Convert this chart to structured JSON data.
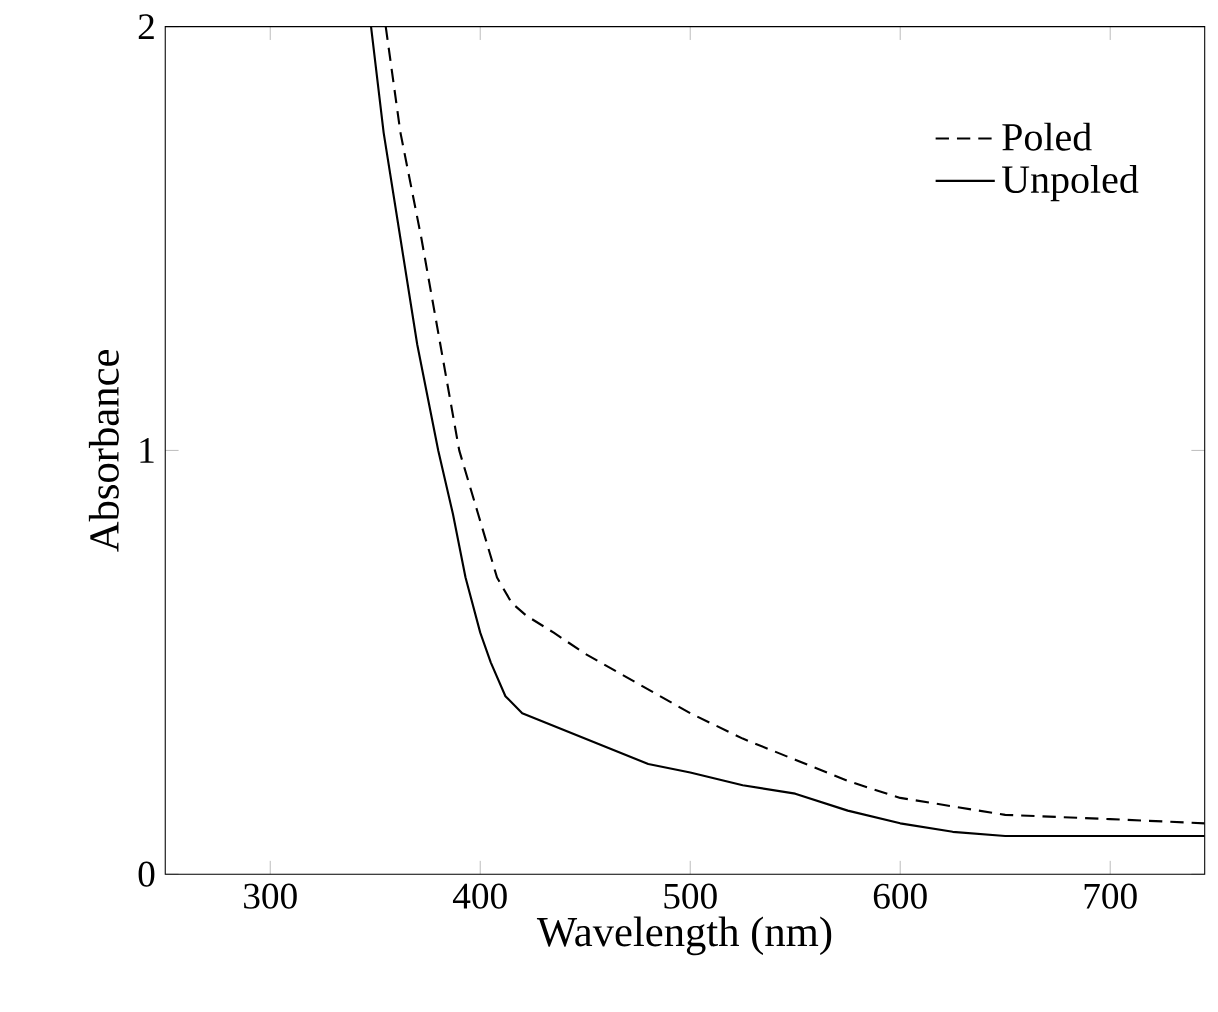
{
  "chart_data": {
    "type": "line",
    "xlabel": "Wavelength (nm)",
    "ylabel": "Absorbance",
    "xlim": [
      250,
      745
    ],
    "xticks": [
      300,
      400,
      500,
      600,
      700
    ],
    "ylim": [
      0,
      2
    ],
    "yticks": [
      0,
      1,
      2
    ],
    "legend": "top right",
    "series": [
      {
        "name": "Poled",
        "color": "#000000",
        "line_style": "dashed",
        "x": [
          355,
          362,
          372,
          381,
          390,
          399,
          408,
          415,
          422,
          435,
          450,
          475,
          500,
          525,
          550,
          575,
          600,
          625,
          650,
          700,
          745
        ],
        "values": [
          2.0,
          1.75,
          1.5,
          1.25,
          1.0,
          0.85,
          0.7,
          0.64,
          0.61,
          0.57,
          0.52,
          0.45,
          0.38,
          0.32,
          0.27,
          0.22,
          0.18,
          0.16,
          0.14,
          0.13,
          0.12
        ]
      },
      {
        "name": "Unpoled",
        "color": "#000000",
        "line_style": "solid",
        "x": [
          348,
          354,
          362,
          370,
          380,
          387,
          393,
          400,
          405,
          412,
          420,
          440,
          460,
          480,
          500,
          525,
          550,
          575,
          600,
          625,
          650,
          700,
          745
        ],
        "values": [
          2.0,
          1.75,
          1.5,
          1.25,
          1.0,
          0.85,
          0.7,
          0.57,
          0.5,
          0.42,
          0.38,
          0.34,
          0.3,
          0.26,
          0.24,
          0.21,
          0.19,
          0.15,
          0.12,
          0.1,
          0.09,
          0.09,
          0.09
        ]
      }
    ]
  }
}
